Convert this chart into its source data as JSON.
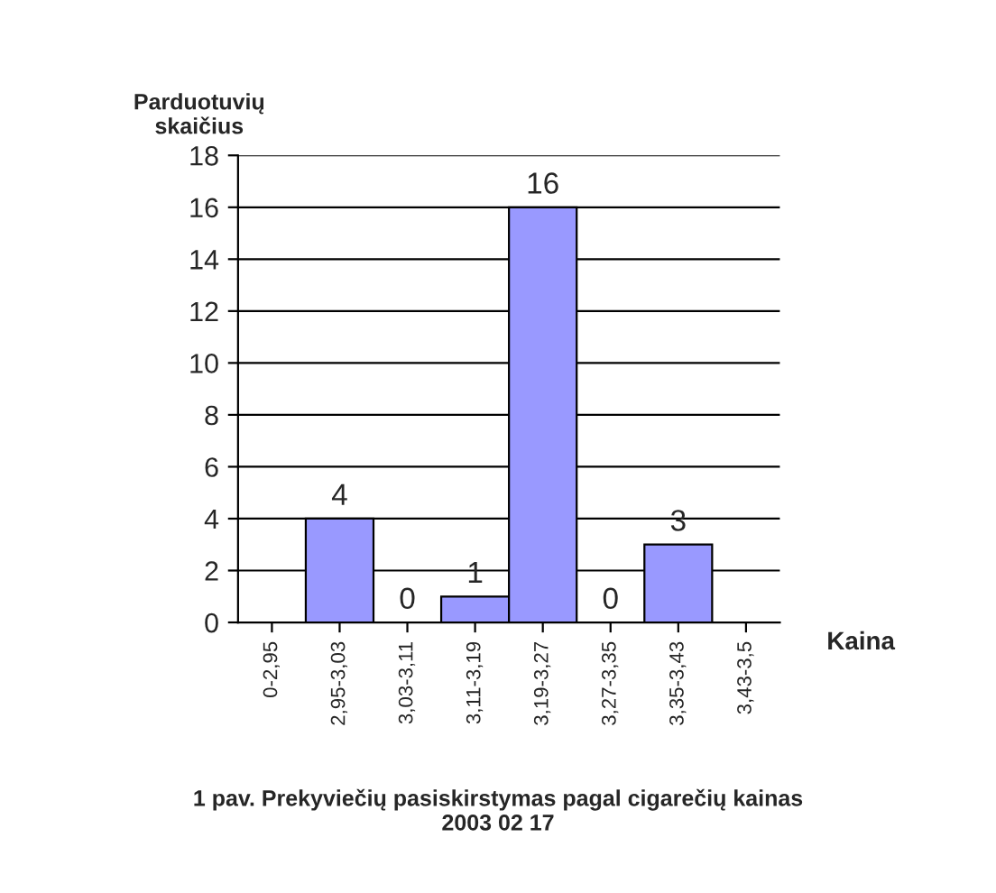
{
  "chart_data": {
    "type": "bar",
    "title": "1 pav. Prekyviečių pasiskirstymas pagal cigarečių kainas\n2003 02 17",
    "xlabel": "Kaina",
    "ylabel": "Parduotuvių\nskaičius",
    "categories": [
      "0-2,95",
      "2,95-3,03",
      "3,03-3,11",
      "3,11-3,19",
      "3,19-3,27",
      "3,27-3,35",
      "3,35-3,43",
      "3,43-3,5"
    ],
    "values": [
      0,
      4,
      0,
      1,
      16,
      0,
      3,
      0
    ],
    "value_labels": [
      null,
      "4",
      "0",
      "1",
      "16",
      "0",
      "3",
      null
    ],
    "color": "#9999ff",
    "ylim": [
      0,
      18
    ],
    "yticks": [
      0,
      2,
      4,
      6,
      8,
      10,
      12,
      14,
      16,
      18
    ],
    "grid": "y",
    "legend": false
  }
}
